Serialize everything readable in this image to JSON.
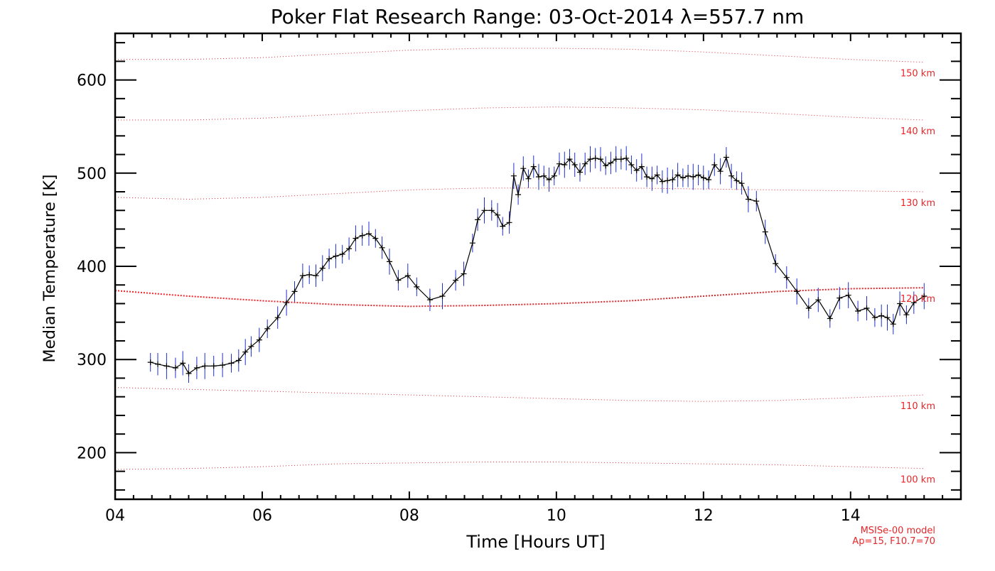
{
  "chart_data": {
    "type": "line",
    "title": "Poker Flat Research Range: 03-Oct-2014 λ=557.7 nm",
    "xlabel": "Time [Hours UT]",
    "ylabel": "Median Temperature [K]",
    "xlim": [
      4,
      15.5
    ],
    "ylim": [
      150,
      650
    ],
    "xticks": [
      4,
      6,
      8,
      10,
      12,
      14
    ],
    "xtick_labels": [
      "04",
      "06",
      "08",
      "10",
      "12",
      "14"
    ],
    "yticks": [
      200,
      300,
      400,
      500,
      600
    ],
    "ytick_labels": [
      "200",
      "300",
      "400",
      "500",
      "600"
    ],
    "grid": false,
    "series": [
      {
        "type": "line-with-error-bars",
        "color": "#000000",
        "error_color": "#1f2fd0",
        "x": [
          4.48,
          4.58,
          4.7,
          4.82,
          4.92,
          5.0,
          5.11,
          5.22,
          5.34,
          5.46,
          5.58,
          5.68,
          5.77,
          5.85,
          5.96,
          6.07,
          6.21,
          6.33,
          6.44,
          6.55,
          6.64,
          6.73,
          6.82,
          6.91,
          7.0,
          7.09,
          7.18,
          7.27,
          7.36,
          7.45,
          7.54,
          7.63,
          7.73,
          7.85,
          7.98,
          8.1,
          8.28,
          8.45,
          8.63,
          8.74,
          8.86,
          8.93,
          9.02,
          9.12,
          9.2,
          9.27,
          9.36,
          9.42,
          9.48,
          9.55,
          9.62,
          9.69,
          9.76,
          9.83,
          9.9,
          9.97,
          10.04,
          10.11,
          10.18,
          10.25,
          10.32,
          10.39,
          10.46,
          10.53,
          10.6,
          10.67,
          10.74,
          10.81,
          10.88,
          10.95,
          11.02,
          11.09,
          11.16,
          11.23,
          11.3,
          11.37,
          11.44,
          11.51,
          11.58,
          11.65,
          11.72,
          11.79,
          11.86,
          11.93,
          12.0,
          12.07,
          12.15,
          12.23,
          12.31,
          12.38,
          12.45,
          12.52,
          12.61,
          12.72,
          12.84,
          12.98,
          13.13,
          13.27,
          13.43,
          13.56,
          13.72,
          13.85,
          13.97,
          14.1,
          14.22,
          14.33,
          14.42,
          14.5,
          14.58,
          14.67,
          14.76,
          14.86,
          15.0
        ],
        "y": [
          297,
          295,
          293,
          291,
          296,
          285,
          291,
          293,
          293,
          294,
          296,
          299,
          308,
          314,
          321,
          333,
          345,
          361,
          373,
          390,
          391,
          390,
          398,
          408,
          411,
          413,
          419,
          430,
          433,
          435,
          430,
          420,
          405,
          385,
          390,
          378,
          364,
          368,
          385,
          392,
          425,
          450,
          460,
          460,
          455,
          443,
          447,
          497,
          477,
          505,
          494,
          507,
          496,
          497,
          493,
          497,
          510,
          509,
          515,
          509,
          501,
          510,
          515,
          516,
          515,
          508,
          511,
          515,
          515,
          516,
          509,
          503,
          507,
          496,
          494,
          498,
          491,
          492,
          493,
          498,
          495,
          497,
          496,
          498,
          495,
          493,
          509,
          502,
          517,
          497,
          492,
          489,
          472,
          470,
          437,
          403,
          388,
          373,
          355,
          364,
          344,
          366,
          369,
          352,
          355,
          345,
          347,
          345,
          338,
          360,
          348,
          361,
          368
        ]
      }
    ],
    "model_curves": [
      {
        "label": "100 km",
        "x": [
          4.0,
          5.0,
          6.0,
          7.0,
          8.0,
          9.0,
          10.0,
          11.0,
          12.0,
          13.0,
          14.0,
          15.0
        ],
        "y": [
          182,
          183,
          185,
          188,
          189,
          190,
          190,
          189,
          188,
          187,
          185,
          183
        ]
      },
      {
        "label": "110 km",
        "x": [
          4.0,
          5.0,
          6.0,
          7.0,
          8.0,
          9.0,
          10.0,
          11.0,
          12.0,
          13.0,
          14.0,
          15.0
        ],
        "y": [
          270,
          268,
          266,
          264,
          262,
          260,
          258,
          256,
          255,
          256,
          259,
          262
        ]
      },
      {
        "label": "120 km",
        "x": [
          4.0,
          5.0,
          6.0,
          7.0,
          8.0,
          9.0,
          10.0,
          11.0,
          12.0,
          13.0,
          14.0,
          15.0
        ],
        "y": [
          374,
          368,
          363,
          359,
          357,
          358,
          360,
          363,
          368,
          373,
          376,
          377
        ]
      },
      {
        "label": "130 km",
        "x": [
          4.0,
          5.0,
          6.0,
          7.0,
          8.0,
          9.0,
          10.0,
          11.0,
          12.0,
          13.0,
          14.0,
          15.0
        ],
        "y": [
          474,
          472,
          474,
          478,
          482,
          484,
          484,
          484,
          483,
          482,
          481,
          480
        ]
      },
      {
        "label": "140 km",
        "x": [
          4.0,
          5.0,
          6.0,
          7.0,
          8.0,
          9.0,
          10.0,
          11.0,
          12.0,
          13.0,
          14.0,
          15.0
        ],
        "y": [
          557,
          557,
          559,
          563,
          567,
          570,
          571,
          570,
          568,
          564,
          560,
          557
        ]
      },
      {
        "label": "150 km",
        "x": [
          4.0,
          5.0,
          6.0,
          7.0,
          8.0,
          9.0,
          10.0,
          11.0,
          12.0,
          13.0,
          14.0,
          15.0
        ],
        "y": [
          622,
          622,
          624,
          628,
          632,
          634,
          634,
          633,
          630,
          626,
          622,
          619
        ]
      }
    ],
    "model_color": "#e8262a",
    "annotations": [
      "MSISe-00 model",
      "Ap=15, F10.7=70"
    ]
  }
}
